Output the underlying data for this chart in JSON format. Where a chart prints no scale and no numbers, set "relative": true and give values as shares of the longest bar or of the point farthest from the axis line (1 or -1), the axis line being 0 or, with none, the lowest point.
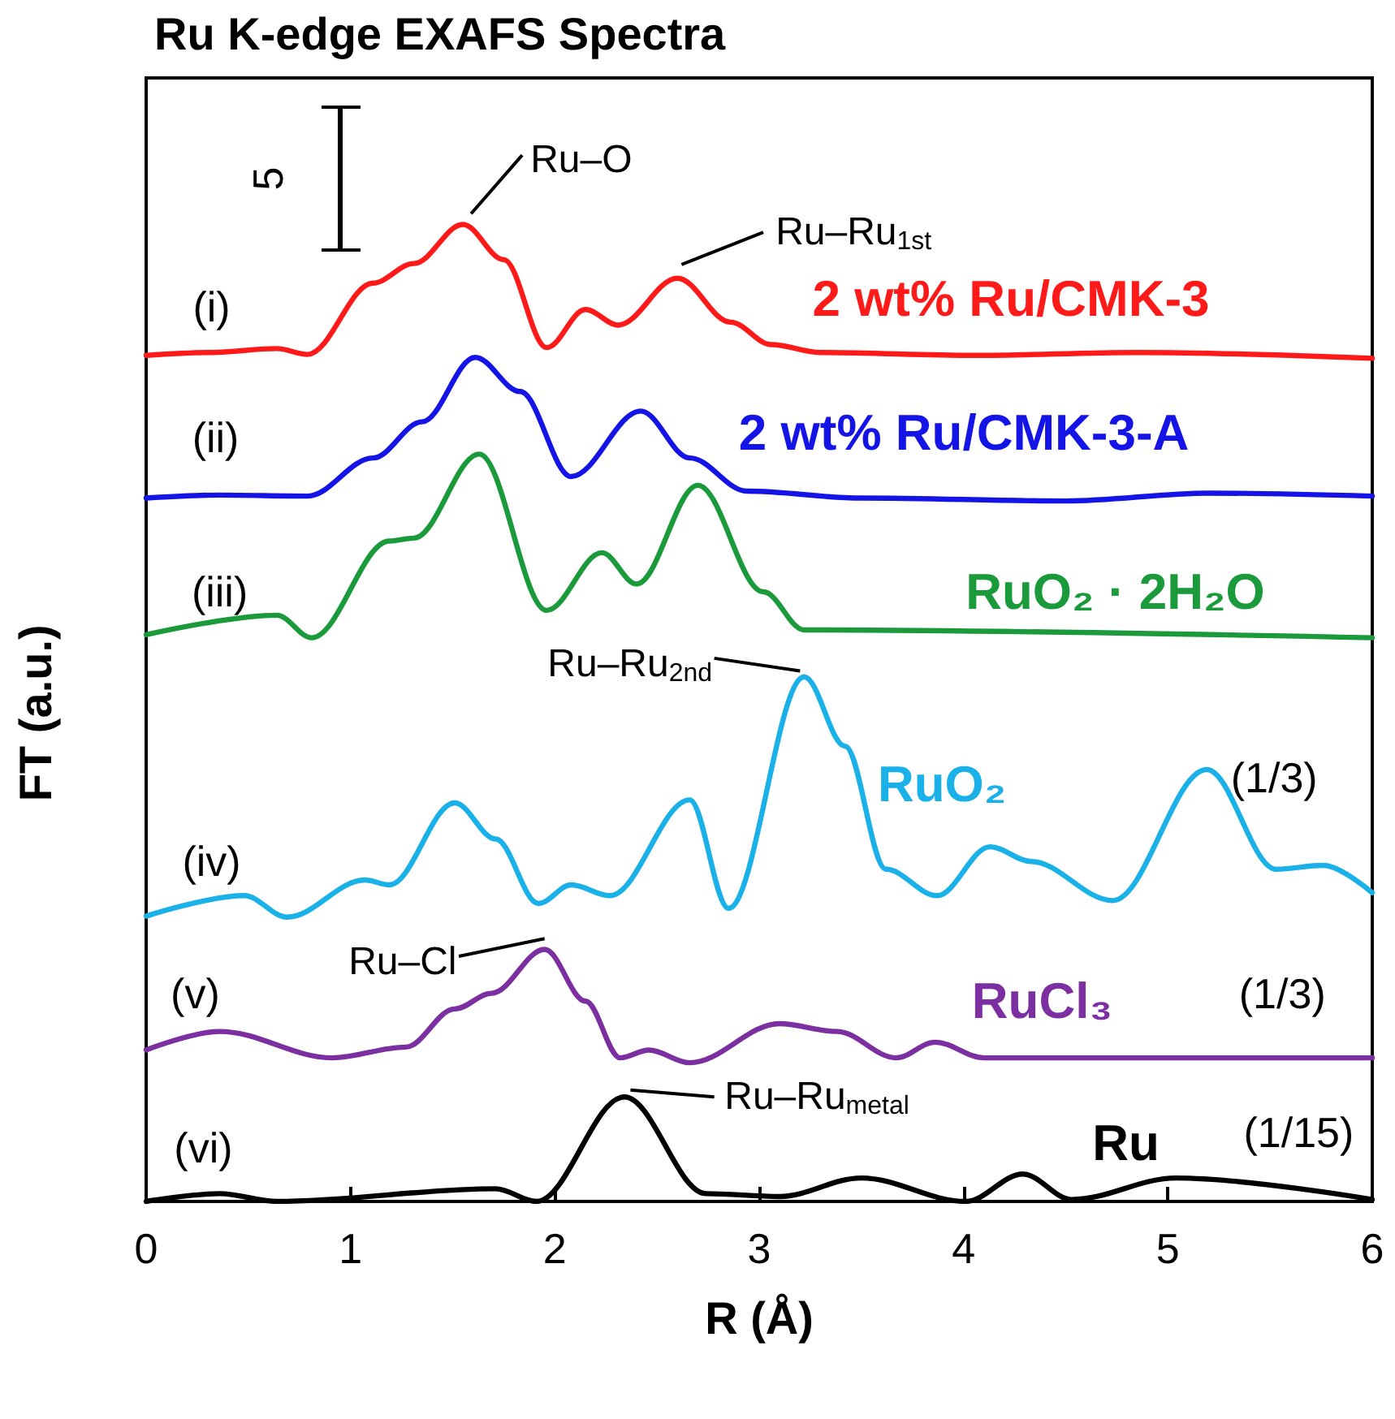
{
  "chart_data": {
    "type": "line",
    "title": "Ru K-edge EXAFS Spectra",
    "xlabel": "R (Å)",
    "ylabel": "FT (a.u.)",
    "relative": true,
    "xlim": [
      0,
      6
    ],
    "xticks": [
      0,
      1,
      2,
      3,
      4,
      5,
      6
    ],
    "grid": false,
    "marker": "none",
    "line_style": "solid",
    "series": [
      {
        "name": "2 wt% Ru/CMK-3",
        "color": "#ff1a1a",
        "x": [
          0,
          0.32,
          0.64,
          0.79,
          1.11,
          1.31,
          1.55,
          1.75,
          1.96,
          2.15,
          2.31,
          2.6,
          2.86,
          3.06,
          3.3,
          4.05,
          4.85,
          6
        ],
        "values": [
          0.866,
          0.869,
          0.873,
          0.867,
          0.94,
          0.96,
          1.0,
          0.964,
          0.874,
          0.913,
          0.897,
          0.945,
          0.9,
          0.877,
          0.869,
          0.866,
          0.869,
          0.863
        ]
      },
      {
        "name": "2 wt% Ru/CMK-3-A",
        "color": "#1414e6",
        "x": [
          0,
          0.36,
          0.79,
          1.11,
          1.35,
          1.61,
          1.83,
          2.08,
          2.42,
          2.66,
          2.94,
          3.5,
          4.5,
          5.2,
          6
        ],
        "values": [
          0.72,
          0.723,
          0.722,
          0.761,
          0.798,
          0.864,
          0.829,
          0.742,
          0.809,
          0.761,
          0.727,
          0.72,
          0.717,
          0.725,
          0.722
        ]
      },
      {
        "name": "RuO₂ · 2H₂O",
        "color": "#1a9a3a",
        "x": [
          0,
          0.64,
          0.81,
          1.19,
          1.31,
          1.63,
          1.96,
          2.23,
          2.4,
          2.7,
          3.02,
          3.22,
          6
        ],
        "values": [
          0.58,
          0.6,
          0.577,
          0.676,
          0.679,
          0.765,
          0.605,
          0.664,
          0.632,
          0.733,
          0.624,
          0.585,
          0.577
        ]
      },
      {
        "name": "RuO₂",
        "color": "#1ab0e8",
        "x": [
          0,
          0.48,
          0.69,
          1.07,
          1.19,
          1.51,
          1.71,
          1.92,
          2.08,
          2.27,
          2.66,
          2.85,
          3.22,
          3.42,
          3.62,
          3.87,
          4.13,
          4.33,
          4.73,
          5.19,
          5.53,
          5.76,
          6
        ],
        "values": [
          0.292,
          0.313,
          0.291,
          0.329,
          0.324,
          0.408,
          0.371,
          0.305,
          0.324,
          0.313,
          0.411,
          0.3,
          0.537,
          0.466,
          0.34,
          0.313,
          0.363,
          0.348,
          0.308,
          0.442,
          0.34,
          0.344,
          0.316
        ]
      },
      {
        "name": "RuCl₃",
        "color": "#7b2fa0",
        "x": [
          0,
          0.36,
          0.91,
          1.27,
          1.51,
          1.69,
          1.95,
          2.15,
          2.32,
          2.46,
          2.66,
          3.1,
          3.38,
          3.67,
          3.86,
          4.1,
          6
        ],
        "values": [
          0.155,
          0.174,
          0.147,
          0.158,
          0.197,
          0.213,
          0.258,
          0.205,
          0.147,
          0.155,
          0.142,
          0.182,
          0.174,
          0.147,
          0.163,
          0.147,
          0.147
        ]
      },
      {
        "name": "Ru",
        "color": "#000000",
        "x": [
          0,
          0.36,
          0.64,
          1.71,
          1.91,
          2.34,
          2.74,
          3.1,
          3.5,
          4.01,
          4.29,
          4.53,
          5.04,
          6
        ],
        "values": [
          0,
          0.008,
          0,
          0.013,
          0,
          0.107,
          0.008,
          0.005,
          0.024,
          0,
          0.028,
          0.002,
          0.024,
          0.002
        ]
      }
    ],
    "annotations": [
      {
        "text": "Ru–O",
        "x": 1.55,
        "y": 1.0
      },
      {
        "text": "Ru–Ru$_{1st}$",
        "x": 2.6,
        "y": 0.945
      },
      {
        "text": "Ru–Ru$_{2nd}$",
        "x": 3.22,
        "y": 0.537
      },
      {
        "text": "Ru–Cl",
        "x": 1.95,
        "y": 0.258
      },
      {
        "text": "Ru–Ru$_{metal}$",
        "x": 2.34,
        "y": 0.107
      },
      "(i)",
      "(ii)",
      "(iii)",
      "(iv)",
      "(v)",
      "(vi)",
      "(1/3)",
      "(1/3)",
      "(1/15)",
      "5"
    ]
  }
}
